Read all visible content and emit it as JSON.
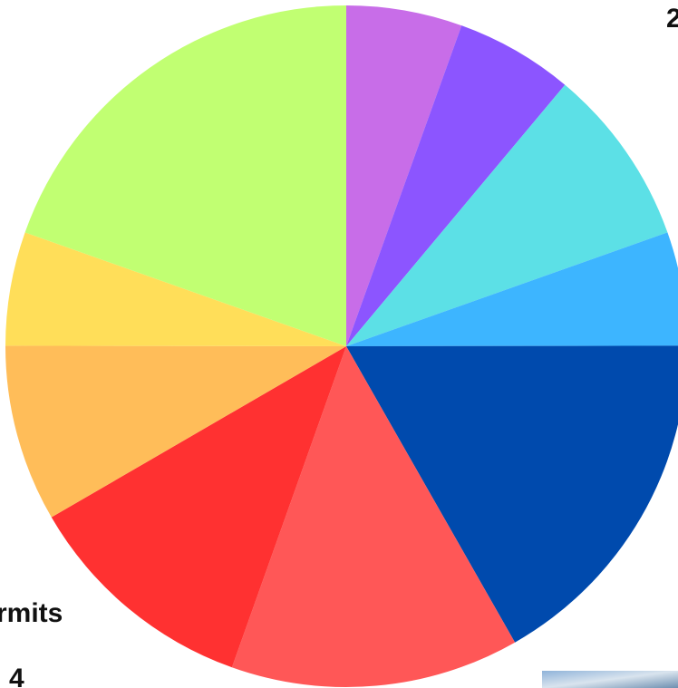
{
  "chart_data": {
    "type": "pie",
    "values": [
      5.5,
      5.6,
      8.5,
      5.4,
      16.8,
      13.7,
      11.2,
      8.4,
      5.4,
      19.6
    ],
    "colors": [
      "#c86de8",
      "#8c55ff",
      "#5ce0e6",
      "#3db5ff",
      "#004aad",
      "#ff5757",
      "#ff3131",
      "#ffbd59",
      "#ffde59",
      "#c1ff72"
    ],
    "annotations": [
      "2",
      "rmits",
      "4"
    ]
  }
}
